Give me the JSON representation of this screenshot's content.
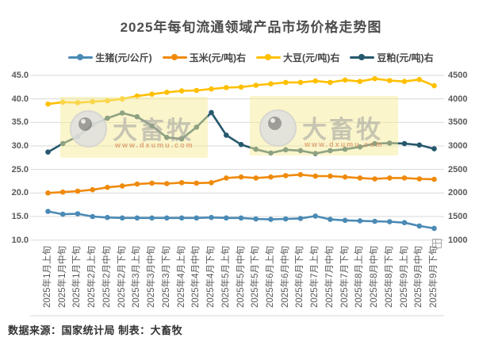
{
  "title": "2025年每旬流通领域产品市场价格走势图",
  "watermark": {
    "brand": "大畜牧",
    "url": "www.dxumu.com"
  },
  "footer": {
    "source_label": "数据来源：国家统计局",
    "maker_label": "制表：大畜牧"
  },
  "chart_data": {
    "type": "line",
    "title": "2025年每旬流通领域产品市场价格走势图",
    "grid": "horizontal",
    "legend_position": "top",
    "x_labels": [
      "2025年1月上旬",
      "2025年1月中旬",
      "2025年1月下旬",
      "2025年2月上旬",
      "2025年2月中旬",
      "2025年2月下旬",
      "2025年3月上旬",
      "2025年3月中旬",
      "2025年3月下旬",
      "2025年4月上旬",
      "2025年4月中旬",
      "2025年4月下旬",
      "2025年5月上旬",
      "2025年5月中旬",
      "2025年5月下旬",
      "2025年6月上旬",
      "2025年6月中旬",
      "2025年6月下旬",
      "2025年7月上旬",
      "2025年7月中旬",
      "2025年7月下旬",
      "2025年8月上旬",
      "2025年8月中旬",
      "2025年8月下旬",
      "2025年9月上旬",
      "2025年9月中旬",
      "2025年9月下旬"
    ],
    "left_axis": {
      "min": 10,
      "max": 45,
      "step": 5,
      "ticks": [
        "45.0",
        "40.0",
        "35.0",
        "30.0",
        "25.0",
        "20.0",
        "15.0",
        "10.0"
      ]
    },
    "right_axis": {
      "min": 1000,
      "max": 4500,
      "step": 500,
      "ticks": [
        "4500",
        "4000",
        "3500",
        "3000",
        "2500",
        "2000",
        "1500",
        "1000"
      ]
    },
    "series": [
      {
        "key": "pig",
        "name": "生猪(元/公斤)",
        "axis": "left",
        "color": "#4a8ab5",
        "values": [
          16.1,
          15.5,
          15.6,
          15.0,
          14.8,
          14.7,
          14.7,
          14.7,
          14.7,
          14.7,
          14.7,
          14.8,
          14.7,
          14.7,
          14.5,
          14.4,
          14.5,
          14.6,
          15.1,
          14.4,
          14.2,
          14.1,
          14.0,
          13.9,
          13.7,
          13.0,
          12.5
        ]
      },
      {
        "key": "corn",
        "name": "玉米(元/吨)右",
        "axis": "right",
        "color": "#ef8a0c",
        "values": [
          2000,
          2020,
          2040,
          2070,
          2120,
          2150,
          2190,
          2210,
          2200,
          2220,
          2210,
          2220,
          2320,
          2340,
          2320,
          2340,
          2370,
          2390,
          2360,
          2360,
          2340,
          2320,
          2300,
          2320,
          2320,
          2300,
          2290
        ]
      },
      {
        "key": "soybean",
        "name": "大豆(元/吨)右",
        "axis": "right",
        "color": "#ffc000",
        "values": [
          3890,
          3930,
          3920,
          3940,
          3960,
          4000,
          4060,
          4100,
          4140,
          4170,
          4180,
          4210,
          4240,
          4250,
          4290,
          4320,
          4350,
          4350,
          4380,
          4350,
          4400,
          4370,
          4430,
          4390,
          4370,
          4410,
          4280
        ]
      },
      {
        "key": "soymeal",
        "name": "豆粕(元/吨)右",
        "axis": "right",
        "color": "#26586d",
        "values": [
          2870,
          3050,
          3200,
          3450,
          3590,
          3700,
          3620,
          3430,
          3180,
          3150,
          3400,
          3710,
          3230,
          3030,
          2930,
          2850,
          2920,
          2900,
          2840,
          2900,
          2930,
          2980,
          3050,
          3060,
          3050,
          3020,
          2940
        ]
      }
    ]
  }
}
